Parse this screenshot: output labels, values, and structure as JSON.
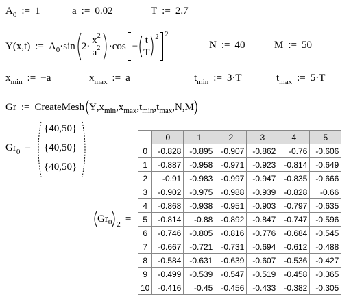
{
  "definitions": {
    "A0": [
      "A",
      "0",
      ":=",
      "1"
    ],
    "a": [
      "a",
      ":=",
      "0.02"
    ],
    "T": [
      "T",
      ":=",
      "2.7"
    ],
    "Y": [
      "Y(x,t)",
      ":=",
      "A",
      "0",
      "·sin",
      "2·",
      "x",
      "2",
      "a",
      "2",
      "·cos",
      "−",
      "t",
      "T",
      "2",
      "2"
    ],
    "N": [
      "N",
      ":=",
      "40"
    ],
    "M": [
      "M",
      ":=",
      "50"
    ],
    "xmin": [
      "x",
      "min",
      ":=",
      "−a"
    ],
    "xmax": [
      "x",
      "max",
      ":=",
      "a"
    ],
    "tmin": [
      "t",
      "min",
      ":=",
      "3·T"
    ],
    "tmax": [
      "t",
      "max",
      ":=",
      "5·T"
    ],
    "Gr": [
      "Gr",
      ":=",
      "CreateMesh",
      "Y",
      ",",
      "x",
      "min",
      ",",
      "x",
      "max",
      ",",
      "t",
      "min",
      ",",
      "t",
      "max",
      ",",
      "N",
      ",",
      "M"
    ]
  },
  "Gr0": {
    "lhs": [
      "Gr",
      "0",
      "="
    ],
    "entries": [
      "{40,50}",
      "{40,50}",
      "{40,50}"
    ]
  },
  "Gr0_2": {
    "lhs": [
      "Gr",
      "0",
      "2",
      "="
    ]
  },
  "table": {
    "columns": [
      0,
      1,
      2,
      3,
      4,
      5
    ],
    "row_labels": [
      0,
      1,
      2,
      3,
      4,
      5,
      6,
      7,
      8,
      9,
      10
    ],
    "rows": [
      [
        -0.828,
        -0.895,
        -0.907,
        -0.862,
        -0.76,
        -0.606
      ],
      [
        -0.887,
        -0.958,
        -0.971,
        -0.923,
        -0.814,
        -0.649
      ],
      [
        -0.91,
        -0.983,
        -0.997,
        -0.947,
        -0.835,
        -0.666
      ],
      [
        -0.902,
        -0.975,
        -0.988,
        -0.939,
        -0.828,
        -0.66
      ],
      [
        -0.868,
        -0.938,
        -0.951,
        -0.903,
        -0.797,
        -0.635
      ],
      [
        -0.814,
        -0.88,
        -0.892,
        -0.847,
        -0.747,
        -0.596
      ],
      [
        -0.746,
        -0.805,
        -0.816,
        -0.776,
        -0.684,
        -0.545
      ],
      [
        -0.667,
        -0.721,
        -0.731,
        -0.694,
        -0.612,
        -0.488
      ],
      [
        -0.584,
        -0.631,
        -0.639,
        -0.607,
        -0.536,
        -0.427
      ],
      [
        -0.499,
        -0.539,
        -0.547,
        -0.519,
        -0.458,
        -0.365
      ],
      [
        -0.416,
        -0.45,
        -0.456,
        -0.433,
        -0.382,
        -0.305
      ]
    ]
  }
}
